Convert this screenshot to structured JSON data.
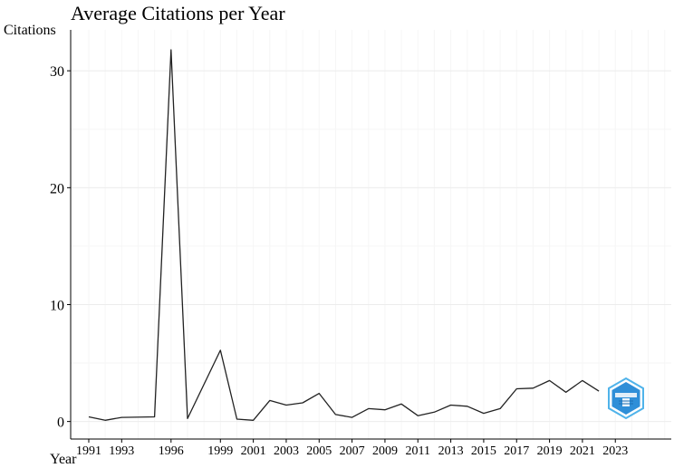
{
  "chart_data": {
    "type": "line",
    "title": "Average Citations per Year",
    "xlabel": "Year",
    "ylabel": "Citations",
    "x_ticks": [
      1991,
      1993,
      1996,
      1999,
      2001,
      2003,
      2005,
      2007,
      2009,
      2011,
      2013,
      2015,
      2017,
      2019,
      2021,
      2023
    ],
    "y_ticks": [
      0,
      10,
      20,
      30
    ],
    "xlim": [
      1989.9,
      2026.4
    ],
    "ylim": [
      -1.5,
      33.5
    ],
    "grid": true,
    "series": [
      {
        "x": [
          1991,
          1992,
          1993,
          1995,
          1996,
          1997,
          1999,
          2000,
          2001,
          2002,
          2003,
          2004,
          2005,
          2006,
          2007,
          2008,
          2009,
          2010,
          2011,
          2012,
          2013,
          2014,
          2015,
          2016,
          2017,
          2018,
          2019,
          2020,
          2021,
          2022
        ],
        "values": [
          0.4,
          0.1,
          0.35,
          0.4,
          31.8,
          0.25,
          6.1,
          0.2,
          0.1,
          1.8,
          1.4,
          1.6,
          2.4,
          0.6,
          0.35,
          1.1,
          1.0,
          1.5,
          0.5,
          0.8,
          1.4,
          1.3,
          0.7,
          1.1,
          2.8,
          2.85,
          3.5,
          2.5,
          3.5,
          2.6
        ],
        "color": "#222222"
      }
    ]
  },
  "watermark": {
    "icon": "bibliometrix-logo-icon",
    "color": "#2f8fd8"
  }
}
